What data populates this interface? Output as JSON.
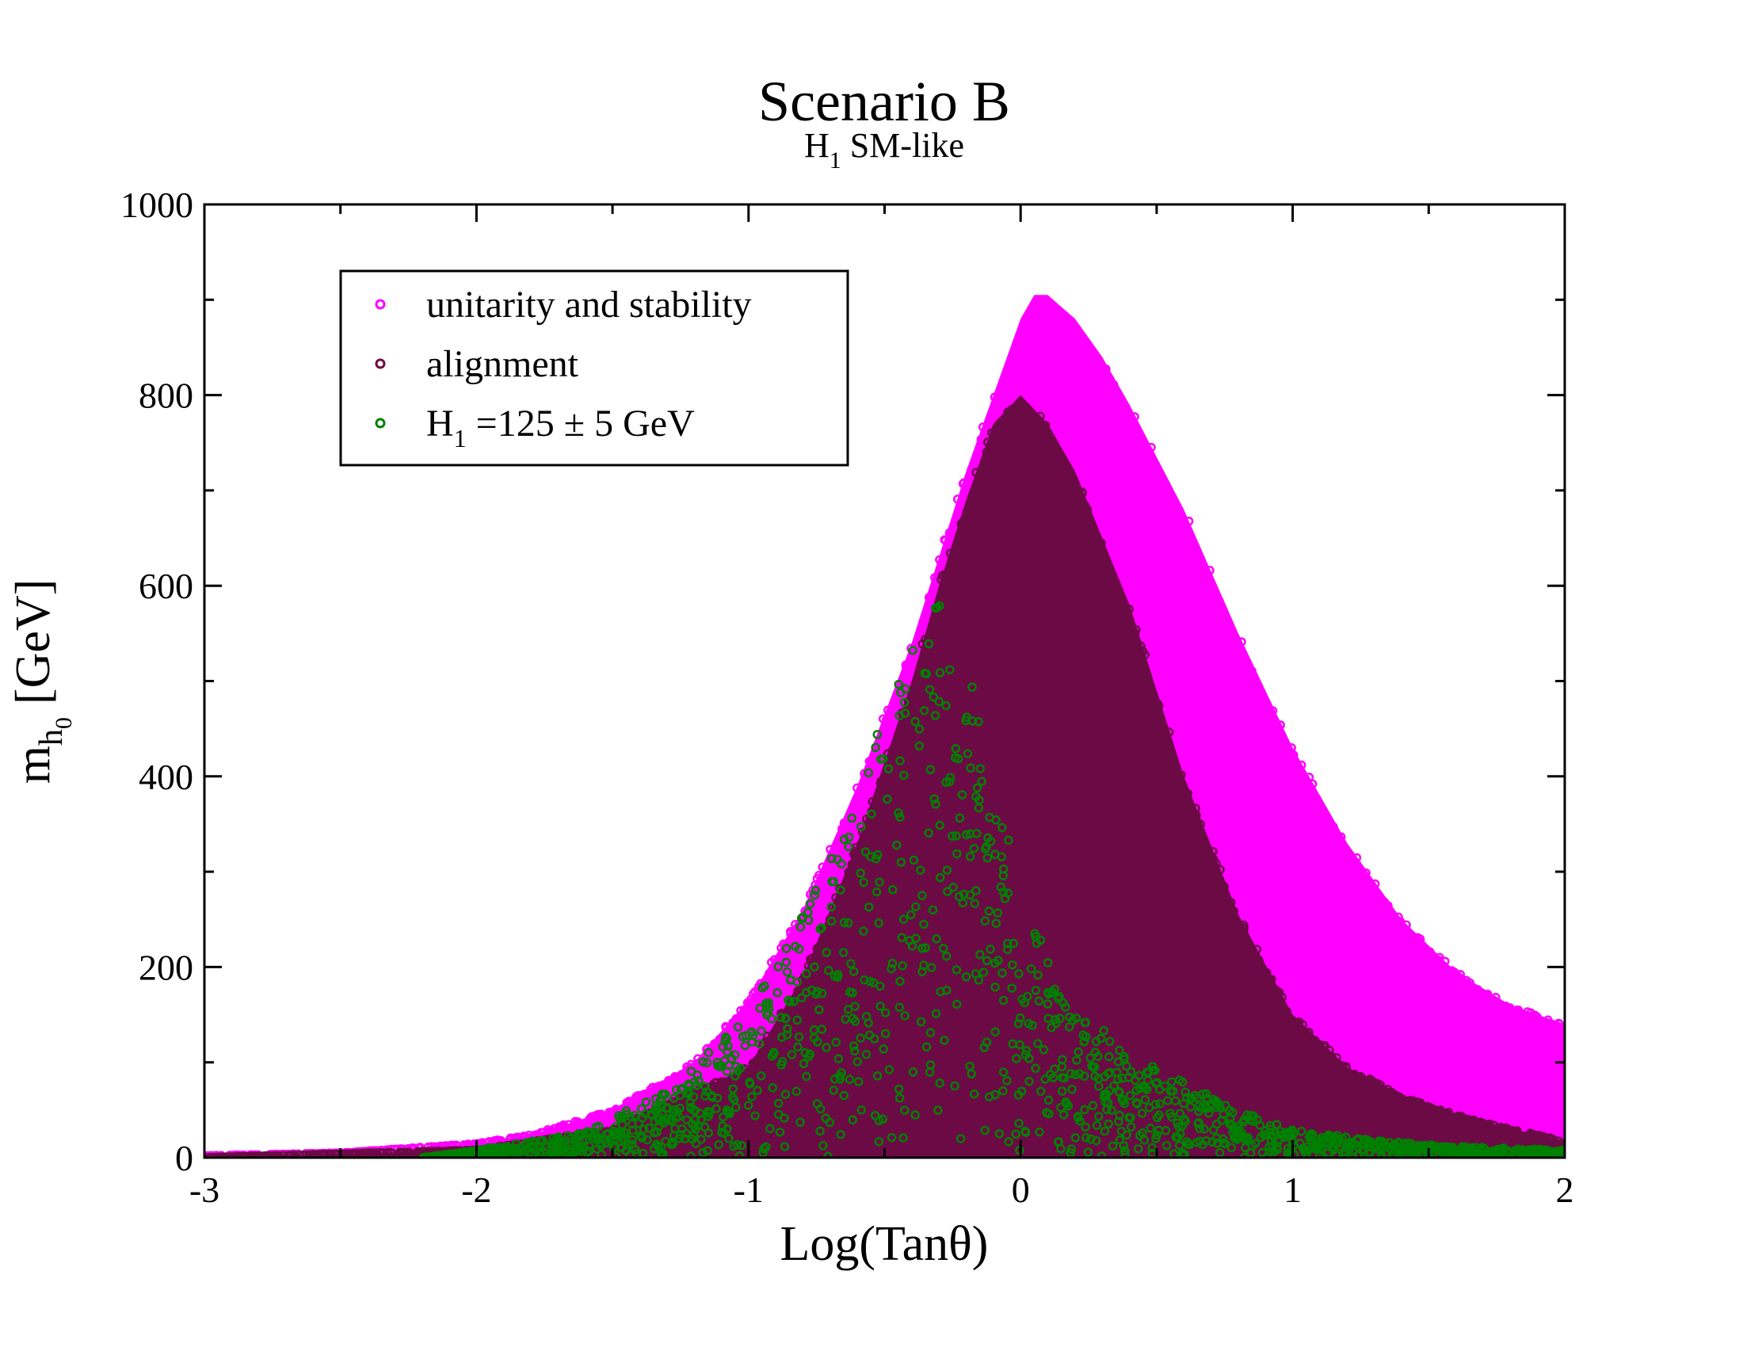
{
  "chart_data": {
    "type": "scatter",
    "title": "Scenario B",
    "subtitle": {
      "main": "H",
      "sub": "1",
      "rest": " SM-like"
    },
    "xlabel": "Log(Tanθ)",
    "ylabel": {
      "main": "m",
      "sub1": "h",
      "sub2": "0",
      "rest": "[GeV]"
    },
    "xlim": [
      -3,
      2
    ],
    "ylim": [
      0,
      1000
    ],
    "xticks": [
      -3,
      -2,
      -1,
      0,
      1,
      2
    ],
    "yticks": [
      0,
      200,
      400,
      600,
      800,
      1000
    ],
    "x_minor_step": 0.5,
    "y_minor_step": 100,
    "grid": false,
    "legend_position": "upper-left",
    "series": [
      {
        "name": "unitarity and stability",
        "color": "#ff00ff",
        "envelope": {
          "x": [
            -3.0,
            -2.5,
            -2.0,
            -1.8,
            -1.5,
            -1.2,
            -1.0,
            -0.8,
            -0.6,
            -0.4,
            -0.3,
            -0.2,
            -0.1,
            0.0,
            0.05,
            0.1,
            0.2,
            0.3,
            0.4,
            0.6,
            0.8,
            1.0,
            1.2,
            1.4,
            1.6,
            1.8,
            2.0
          ],
          "upper": [
            2,
            5,
            15,
            24,
            50,
            100,
            165,
            260,
            390,
            540,
            630,
            720,
            800,
            880,
            905,
            905,
            880,
            840,
            790,
            680,
            550,
            430,
            330,
            250,
            195,
            160,
            140
          ]
        }
      },
      {
        "name": "alignment",
        "color": "#6b0a45",
        "envelope": {
          "x": [
            -3.0,
            -2.0,
            -1.5,
            -1.0,
            -0.8,
            -0.6,
            -0.4,
            -0.3,
            -0.2,
            -0.1,
            0.0,
            0.1,
            0.2,
            0.3,
            0.4,
            0.5,
            0.6,
            0.8,
            1.0,
            1.2,
            1.4,
            1.6,
            1.8,
            2.0
          ],
          "upper": [
            0,
            8,
            30,
            95,
            190,
            330,
            500,
            600,
            690,
            770,
            800,
            770,
            720,
            650,
            580,
            490,
            400,
            255,
            150,
            95,
            65,
            45,
            30,
            18
          ]
        }
      },
      {
        "name": "H =125 ± 5 GeV",
        "legend_label": {
          "main": "H",
          "sub": "1",
          "rest": " =125 ± 5 GeV"
        },
        "color": "#008000",
        "envelope": {
          "x": [
            -2.2,
            -2.0,
            -1.6,
            -1.3,
            -1.0,
            -0.8,
            -0.6,
            -0.5,
            -0.4,
            -0.3,
            -0.2,
            -0.1,
            0.0,
            0.1,
            0.2,
            0.4,
            0.6,
            0.8,
            1.0,
            1.3,
            1.6,
            2.0
          ],
          "upper": [
            0,
            8,
            28,
            70,
            150,
            260,
            390,
            470,
            540,
            590,
            520,
            400,
            290,
            210,
            160,
            110,
            80,
            50,
            30,
            18,
            12,
            8
          ]
        }
      }
    ]
  }
}
